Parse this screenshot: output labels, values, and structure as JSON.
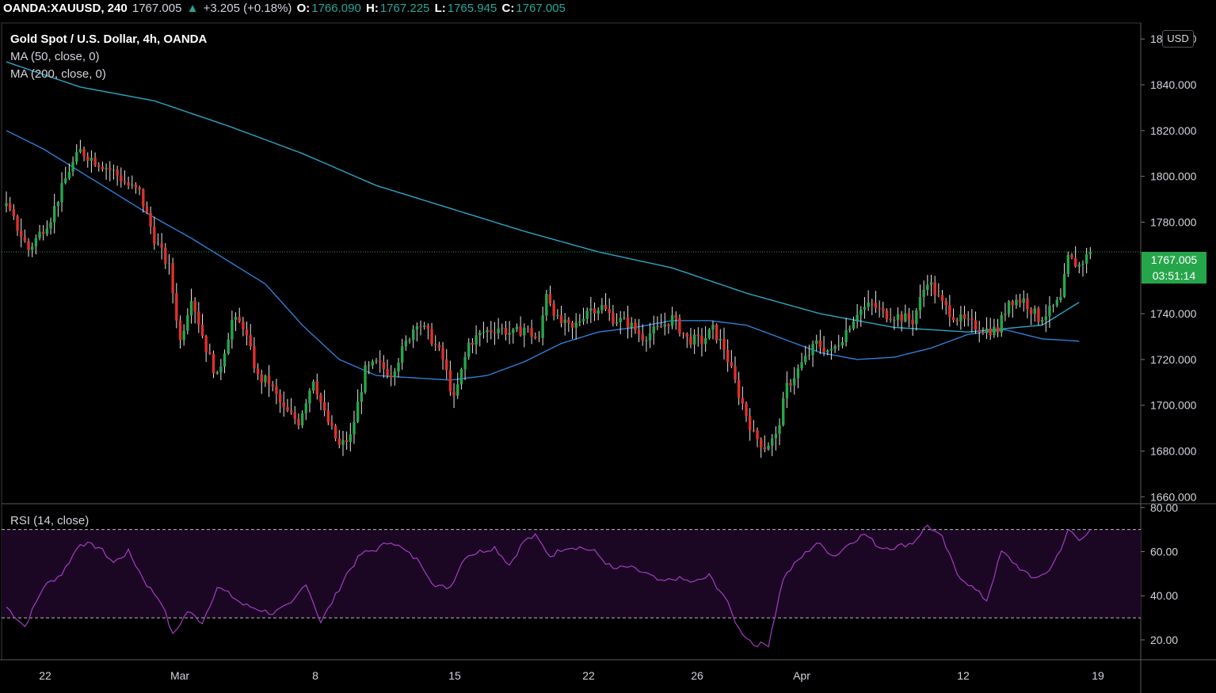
{
  "header": {
    "symbol": "OANDA:XAUUSD, 240",
    "last": "1767.005",
    "change_arrow": "▲",
    "change": "+3.205 (+0.18%)",
    "open_label": "O:",
    "open": "1766.090",
    "high_label": "H:",
    "high": "1767.225",
    "low_label": "L:",
    "low": "1765.945",
    "close_label": "C:",
    "close": "1767.005"
  },
  "legend": {
    "title": "Gold Spot / U.S. Dollar, 4h, OANDA",
    "ma50": "MA (50, close, 0)",
    "ma200": "MA (200, close, 0)",
    "rsi": "RSI (14, close)"
  },
  "price_axis": {
    "currency": "USD",
    "last_price_label": "1767.005",
    "countdown": "03:51:14"
  },
  "colors": {
    "up": "#26a64a",
    "down": "#e0302a",
    "ma50": "#2c7fd6",
    "ma200": "#2aa6c8",
    "rsi": "#a33cc4",
    "rsi_band": "#1b0723",
    "background": "#000000"
  },
  "chart_data": [
    {
      "type": "candlestick",
      "title": "Gold Spot / U.S. Dollar, 4h, OANDA",
      "x_ticks": [
        "22",
        "Mar",
        "8",
        "15",
        "22",
        "26",
        "Apr",
        "12",
        "19"
      ],
      "y_ticks": [
        "1860.000",
        "1840.000",
        "1820.000",
        "1800.000",
        "1780.000",
        "1740.000",
        "1720.000",
        "1700.000",
        "1680.000",
        "1660.000"
      ],
      "ylim": [
        1657,
        1867
      ],
      "last_price": 1767.005,
      "grid": false,
      "close_anchors": [
        [
          0,
          1787
        ],
        [
          6,
          1768
        ],
        [
          12,
          1782
        ],
        [
          17,
          1803
        ],
        [
          20,
          1811
        ],
        [
          25,
          1806
        ],
        [
          29,
          1802
        ],
        [
          33,
          1796
        ],
        [
          36,
          1793
        ],
        [
          40,
          1773
        ],
        [
          44,
          1760
        ],
        [
          47,
          1728
        ],
        [
          50,
          1748
        ],
        [
          54,
          1725
        ],
        [
          57,
          1712
        ],
        [
          61,
          1737
        ],
        [
          64,
          1735
        ],
        [
          68,
          1712
        ],
        [
          71,
          1710
        ],
        [
          75,
          1698
        ],
        [
          79,
          1693
        ],
        [
          83,
          1712
        ],
        [
          86,
          1696
        ],
        [
          90,
          1682
        ],
        [
          93,
          1686
        ],
        [
          97,
          1715
        ],
        [
          100,
          1718
        ],
        [
          104,
          1714
        ],
        [
          108,
          1727
        ],
        [
          111,
          1737
        ],
        [
          115,
          1729
        ],
        [
          118,
          1720
        ],
        [
          121,
          1702
        ],
        [
          125,
          1727
        ],
        [
          129,
          1732
        ],
        [
          133,
          1734
        ],
        [
          137,
          1731
        ],
        [
          140,
          1734
        ],
        [
          144,
          1728
        ],
        [
          146,
          1750
        ],
        [
          149,
          1737
        ],
        [
          153,
          1733
        ],
        [
          157,
          1742
        ],
        [
          161,
          1743
        ],
        [
          164,
          1738
        ],
        [
          168,
          1736
        ],
        [
          172,
          1730
        ],
        [
          176,
          1733
        ],
        [
          180,
          1738
        ],
        [
          184,
          1729
        ],
        [
          188,
          1728
        ],
        [
          191,
          1733
        ],
        [
          194,
          1725
        ],
        [
          198,
          1705
        ],
        [
          202,
          1687
        ],
        [
          205,
          1682
        ],
        [
          208,
          1686
        ],
        [
          211,
          1708
        ],
        [
          215,
          1718
        ],
        [
          219,
          1727
        ],
        [
          223,
          1723
        ],
        [
          226,
          1730
        ],
        [
          230,
          1741
        ],
        [
          234,
          1744
        ],
        [
          237,
          1740
        ],
        [
          241,
          1739
        ],
        [
          245,
          1737
        ],
        [
          249,
          1755
        ],
        [
          253,
          1744
        ],
        [
          257,
          1738
        ],
        [
          261,
          1735
        ],
        [
          265,
          1733
        ],
        [
          268,
          1733
        ],
        [
          271,
          1746
        ],
        [
          275,
          1746
        ],
        [
          279,
          1738
        ],
        [
          282,
          1741
        ],
        [
          285,
          1746
        ],
        [
          287,
          1764
        ],
        [
          290,
          1761
        ],
        [
          293,
          1767
        ]
      ],
      "ma50": [
        [
          0,
          1820
        ],
        [
          10,
          1812
        ],
        [
          20,
          1802
        ],
        [
          30,
          1792
        ],
        [
          40,
          1782
        ],
        [
          50,
          1773
        ],
        [
          60,
          1763
        ],
        [
          70,
          1753
        ],
        [
          80,
          1735
        ],
        [
          90,
          1720
        ],
        [
          100,
          1713
        ],
        [
          110,
          1712
        ],
        [
          120,
          1711
        ],
        [
          130,
          1713
        ],
        [
          140,
          1719
        ],
        [
          150,
          1727
        ],
        [
          160,
          1732
        ],
        [
          170,
          1734
        ],
        [
          180,
          1737
        ],
        [
          190,
          1737
        ],
        [
          200,
          1735
        ],
        [
          210,
          1729
        ],
        [
          220,
          1723
        ],
        [
          230,
          1720
        ],
        [
          240,
          1721
        ],
        [
          250,
          1725
        ],
        [
          260,
          1731
        ],
        [
          270,
          1733
        ],
        [
          280,
          1729
        ],
        [
          290,
          1728
        ]
      ],
      "ma200": [
        [
          0,
          1850
        ],
        [
          20,
          1839
        ],
        [
          40,
          1833
        ],
        [
          60,
          1822
        ],
        [
          80,
          1810
        ],
        [
          100,
          1796
        ],
        [
          120,
          1786
        ],
        [
          140,
          1776
        ],
        [
          160,
          1767
        ],
        [
          180,
          1760
        ],
        [
          200,
          1749
        ],
        [
          220,
          1740
        ],
        [
          240,
          1734
        ],
        [
          260,
          1732
        ],
        [
          280,
          1735
        ],
        [
          290,
          1745
        ]
      ]
    },
    {
      "type": "line",
      "title": "RSI (14, close)",
      "y_ticks": [
        "80.00",
        "60.00",
        "40.00",
        "20.00"
      ],
      "ylim": [
        11,
        81
      ],
      "bands": [
        30,
        70
      ],
      "values": [
        [
          0,
          35
        ],
        [
          5,
          26
        ],
        [
          10,
          44
        ],
        [
          15,
          50
        ],
        [
          20,
          64
        ],
        [
          25,
          62
        ],
        [
          29,
          55
        ],
        [
          33,
          60
        ],
        [
          38,
          45
        ],
        [
          42,
          37
        ],
        [
          45,
          22
        ],
        [
          49,
          33
        ],
        [
          53,
          28
        ],
        [
          57,
          44
        ],
        [
          60,
          41
        ],
        [
          64,
          36
        ],
        [
          68,
          34
        ],
        [
          72,
          32
        ],
        [
          77,
          36
        ],
        [
          81,
          46
        ],
        [
          85,
          28
        ],
        [
          89,
          40
        ],
        [
          92,
          50
        ],
        [
          96,
          59
        ],
        [
          100,
          61
        ],
        [
          104,
          65
        ],
        [
          108,
          60
        ],
        [
          112,
          55
        ],
        [
          116,
          44
        ],
        [
          120,
          44
        ],
        [
          124,
          58
        ],
        [
          128,
          60
        ],
        [
          132,
          62
        ],
        [
          136,
          54
        ],
        [
          140,
          65
        ],
        [
          143,
          67
        ],
        [
          147,
          58
        ],
        [
          151,
          62
        ],
        [
          155,
          62
        ],
        [
          159,
          60
        ],
        [
          164,
          52
        ],
        [
          168,
          53
        ],
        [
          173,
          50
        ],
        [
          177,
          46
        ],
        [
          181,
          48
        ],
        [
          186,
          46
        ],
        [
          190,
          49
        ],
        [
          194,
          40
        ],
        [
          198,
          25
        ],
        [
          202,
          18
        ],
        [
          206,
          18
        ],
        [
          210,
          48
        ],
        [
          214,
          56
        ],
        [
          219,
          64
        ],
        [
          224,
          58
        ],
        [
          228,
          64
        ],
        [
          232,
          68
        ],
        [
          236,
          62
        ],
        [
          240,
          62
        ],
        [
          245,
          64
        ],
        [
          249,
          72
        ],
        [
          253,
          66
        ],
        [
          257,
          50
        ],
        [
          261,
          44
        ],
        [
          265,
          38
        ],
        [
          269,
          60
        ],
        [
          273,
          54
        ],
        [
          277,
          48
        ],
        [
          281,
          50
        ],
        [
          285,
          60
        ],
        [
          287,
          70
        ],
        [
          290,
          66
        ],
        [
          293,
          69
        ]
      ]
    }
  ]
}
